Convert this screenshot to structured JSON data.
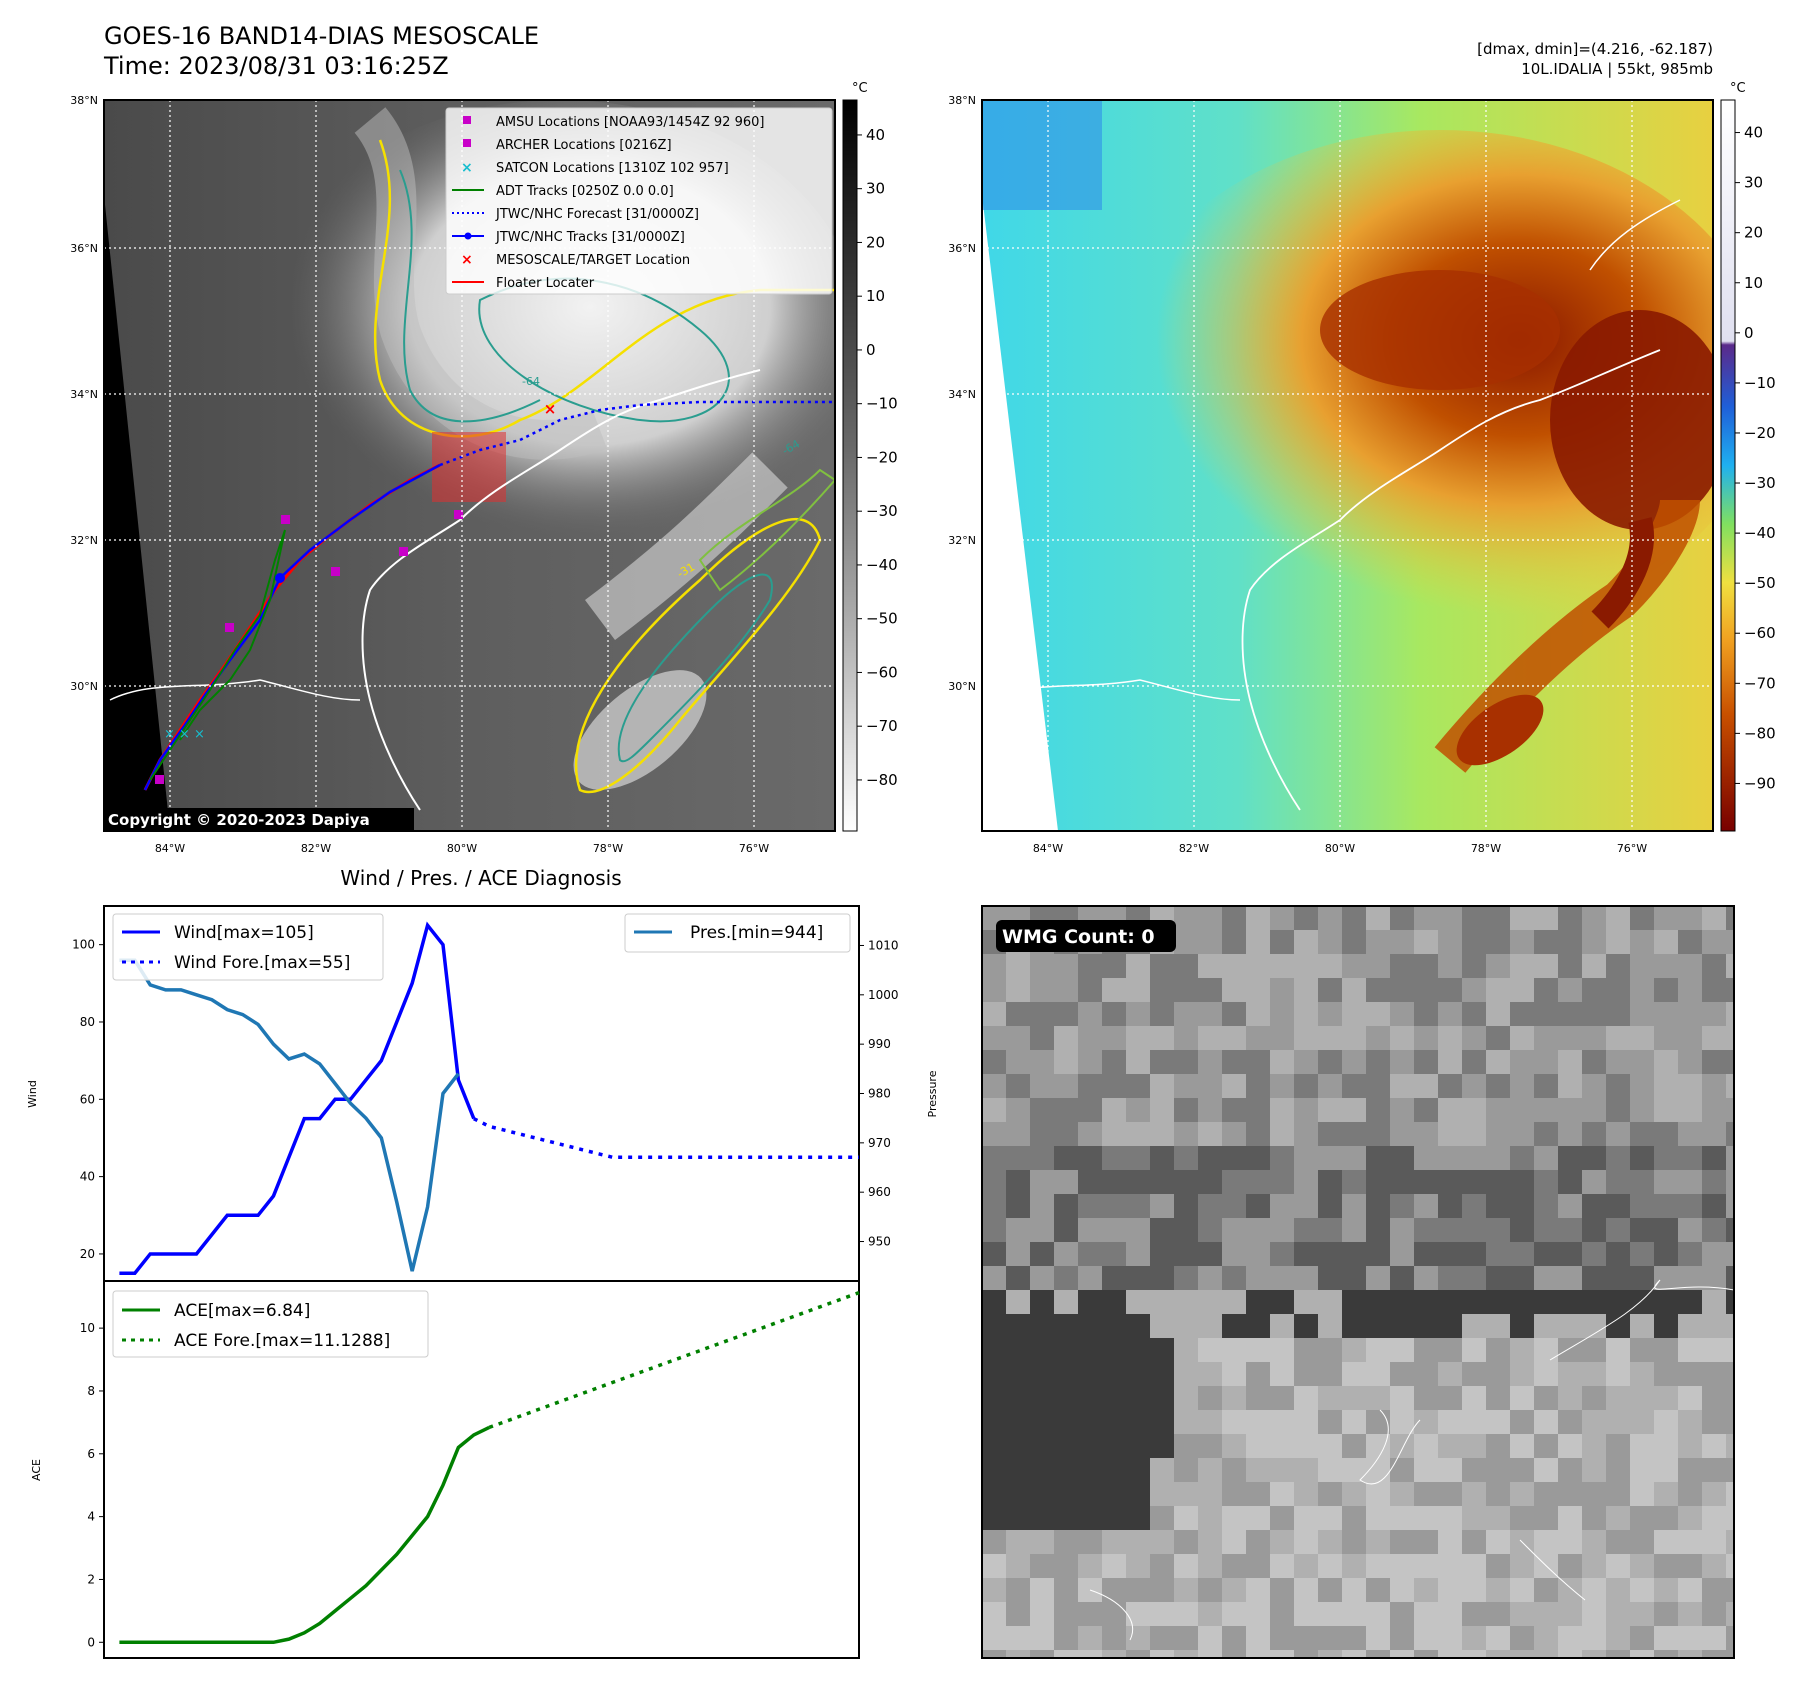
{
  "header": {
    "title": "GOES-16 BAND14-DIAS MESOSCALE",
    "time": "Time: 2023/08/31 03:16:25Z",
    "info_line1": "[dmax, dmin]=(4.216, -62.187)",
    "info_line2": "10L.IDALIA | 55kt, 985mb"
  },
  "maps": {
    "unit": "°C",
    "lat_ticks": [
      "38°N",
      "36°N",
      "34°N",
      "32°N",
      "30°N"
    ],
    "lon_ticks": [
      "84°W",
      "82°W",
      "80°W",
      "78°W",
      "76°W"
    ],
    "gray_colorbar_ticks": [
      "40",
      "30",
      "20",
      "10",
      "0",
      "−10",
      "−20",
      "−30",
      "−40",
      "−50",
      "−60",
      "−70",
      "−80"
    ],
    "color_colorbar_ticks": [
      "40",
      "30",
      "20",
      "10",
      "0",
      "−10",
      "−20",
      "−30",
      "−40",
      "−50",
      "−60",
      "−70",
      "−80",
      "−90"
    ],
    "copyright": "Copyright © 2020-2023 Dapiya",
    "contour_labels": [
      "-64",
      "-64",
      "-31"
    ],
    "legend": [
      {
        "label": "AMSU Locations [NOAA93/1454Z 92 960]",
        "color": "#c800c8",
        "marker": "square"
      },
      {
        "label": "ARCHER Locations [0216Z]",
        "color": "#c800c8",
        "marker": "square"
      },
      {
        "label": "SATCON Locations [1310Z 102 957]",
        "color": "#17becf",
        "marker": "x"
      },
      {
        "label": "ADT Tracks [0250Z 0.0 0.0]",
        "color": "#008000",
        "marker": "line"
      },
      {
        "label": "JTWC/NHC Forecast [31/0000Z]",
        "color": "#0000ff",
        "marker": "dotted"
      },
      {
        "label": "JTWC/NHC Tracks [31/0000Z]",
        "color": "#0000ff",
        "marker": "line-dot"
      },
      {
        "label": "MESOSCALE/TARGET Location",
        "color": "#ff0000",
        "marker": "x"
      },
      {
        "label": "Floater Locater",
        "color": "#ff0000",
        "marker": "line"
      }
    ]
  },
  "wmg": {
    "badge": "WMG Count: 0"
  },
  "colors": {
    "wind": "#0000ff",
    "pressure": "#1f77b4",
    "ace": "#008000"
  },
  "chart_data": [
    {
      "type": "line",
      "title": "Wind / Pres. / ACE Diagnosis",
      "ylabel": "Wind",
      "y2label": "Pressure",
      "ylim": [
        13,
        110
      ],
      "y2lim": [
        942,
        1018
      ],
      "yticks": [
        20,
        40,
        60,
        80,
        100
      ],
      "y2ticks": [
        950,
        960,
        970,
        980,
        990,
        1000,
        1010
      ],
      "series": [
        {
          "name": "Wind[max=105]",
          "axis": "left",
          "style": "solid",
          "values": [
            15,
            15,
            20,
            20,
            20,
            20,
            25,
            30,
            30,
            30,
            35,
            45,
            55,
            55,
            60,
            60,
            65,
            70,
            80,
            90,
            105,
            100,
            65,
            55
          ]
        },
        {
          "name": "Wind Fore.[max=55]",
          "axis": "left",
          "style": "dotted",
          "x": [
            23,
            24,
            25,
            26,
            27,
            28,
            29,
            30,
            31,
            32,
            33,
            34,
            35,
            36,
            37,
            38,
            39,
            40,
            41,
            42,
            43,
            44,
            45,
            46,
            47,
            48
          ],
          "values": [
            55,
            53,
            52,
            51,
            50,
            49,
            48,
            47,
            46,
            45,
            45,
            45,
            45,
            45,
            45,
            45,
            45,
            45,
            45,
            45,
            45,
            45,
            45,
            45,
            45,
            45
          ]
        },
        {
          "name": "Pres.[min=944]",
          "axis": "right",
          "style": "solid",
          "values": [
            1007,
            1007,
            1002,
            1001,
            1001,
            1000,
            999,
            997,
            996,
            994,
            990,
            987,
            988,
            986,
            982,
            978,
            975,
            971,
            958,
            944,
            957,
            980,
            984
          ]
        }
      ]
    },
    {
      "type": "line",
      "ylabel": "ACE",
      "ylim": [
        -0.5,
        11.5
      ],
      "yticks": [
        0,
        2,
        4,
        6,
        8,
        10
      ],
      "series": [
        {
          "name": "ACE[max=6.84]",
          "style": "solid",
          "values": [
            0,
            0,
            0,
            0,
            0,
            0,
            0,
            0,
            0,
            0,
            0,
            0.1,
            0.3,
            0.6,
            1.0,
            1.4,
            1.8,
            2.3,
            2.8,
            3.4,
            4.0,
            5.0,
            6.2,
            6.6,
            6.84
          ]
        },
        {
          "name": "ACE Fore.[max=11.1288]",
          "style": "dotted",
          "x": [
            24,
            48
          ],
          "values": [
            6.84,
            11.1288
          ]
        }
      ]
    }
  ]
}
